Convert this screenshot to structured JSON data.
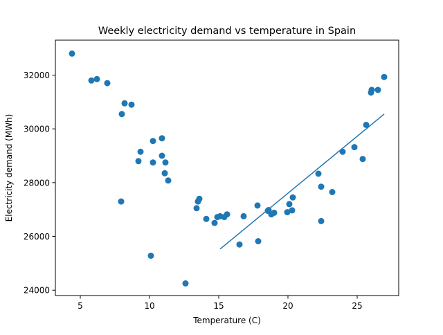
{
  "chart_data": {
    "type": "scatter",
    "title": "Weekly electricity demand vs temperature in Spain",
    "xlabel": "Temperature (C)",
    "ylabel": "Electricity demand (MWh)",
    "xlim": [
      3.2,
      28.0
    ],
    "ylim": [
      23800,
      33300
    ],
    "xticks": [
      5,
      10,
      15,
      20,
      25
    ],
    "yticks": [
      24000,
      26000,
      28000,
      30000,
      32000
    ],
    "grid": false,
    "colors": {
      "points": "#1f77b4",
      "fit_line": "#1f77b4"
    },
    "series": [
      {
        "type": "scatter",
        "x": [
          4.4,
          5.8,
          6.2,
          6.95,
          8.0,
          7.95,
          8.2,
          8.7,
          9.2,
          9.35,
          10.1,
          10.25,
          10.25,
          10.9,
          10.9,
          11.1,
          11.15,
          11.35,
          12.6,
          13.4,
          13.5,
          13.6,
          14.1,
          14.7,
          14.9,
          15.1,
          15.4,
          15.6,
          16.5,
          16.8,
          17.8,
          17.85,
          18.55,
          18.6,
          18.8,
          19.0,
          19.95,
          20.1,
          20.3,
          20.35,
          22.2,
          22.4,
          22.4,
          23.2,
          23.95,
          24.8,
          25.4,
          25.65,
          26.0,
          26.05,
          26.5,
          26.95
        ],
        "y": [
          32800,
          31800,
          31850,
          31700,
          30550,
          27300,
          30950,
          30900,
          28800,
          29150,
          25280,
          29550,
          28750,
          29650,
          29000,
          28350,
          28750,
          28080,
          24250,
          27050,
          27300,
          27400,
          26650,
          26500,
          26720,
          26750,
          26720,
          26820,
          25700,
          26750,
          27150,
          25820,
          26950,
          26980,
          26820,
          26880,
          26900,
          27200,
          26970,
          27450,
          28330,
          27850,
          26570,
          27650,
          29150,
          29320,
          28880,
          30150,
          31350,
          31450,
          31450,
          31930
        ]
      },
      {
        "type": "line",
        "x": [
          15.1,
          26.95
        ],
        "y": [
          25530,
          30550
        ]
      }
    ]
  }
}
